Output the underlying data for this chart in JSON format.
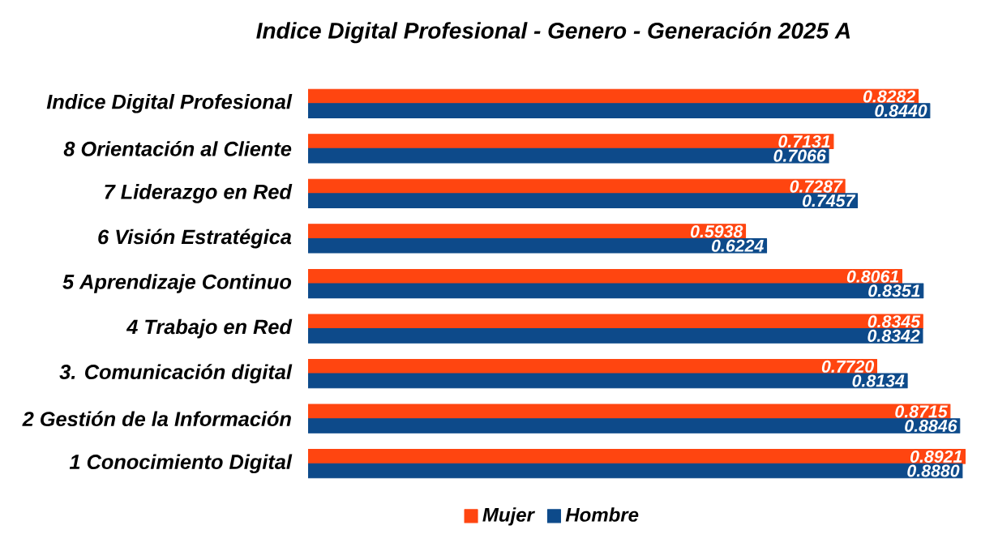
{
  "chart_data": {
    "type": "bar",
    "orientation": "horizontal",
    "legend": "bottom",
    "title": "Indice Digital Profesional - Genero - Generación 2025 A",
    "categories": [
      "Indice Digital Profesional",
      "8 Orientación al Cliente",
      "7 Liderazgo en Red",
      "6 Visión Estratégica",
      "5 Aprendizaje Continuo",
      "4 Trabajo en Red",
      "3. Comunicación digital",
      "2 Gestión de la Información",
      "1 Conocimiento Digital"
    ],
    "series": [
      {
        "name": "Mujer",
        "color": "#ff4510",
        "values": [
          0.8282,
          0.7131,
          0.7287,
          0.5938,
          0.8061,
          0.8345,
          0.772,
          0.8715,
          0.8921
        ],
        "value_labels": [
          "0.8282",
          "0.7131",
          "0.7287",
          "0.5938",
          "0.8061",
          "0.8345",
          "0.7720",
          "0.8715",
          "0.8921"
        ]
      },
      {
        "name": "Hombre",
        "color": "#0d4a8a",
        "values": [
          0.844,
          0.7066,
          0.7457,
          0.6224,
          0.8351,
          0.8342,
          0.8134,
          0.8846,
          0.888
        ],
        "value_labels": [
          "0.8440",
          "0.7066",
          "0.7457",
          "0.6224",
          "0.8351",
          "0.8342",
          "0.8134",
          "0.8846",
          "0.8880"
        ]
      }
    ]
  }
}
